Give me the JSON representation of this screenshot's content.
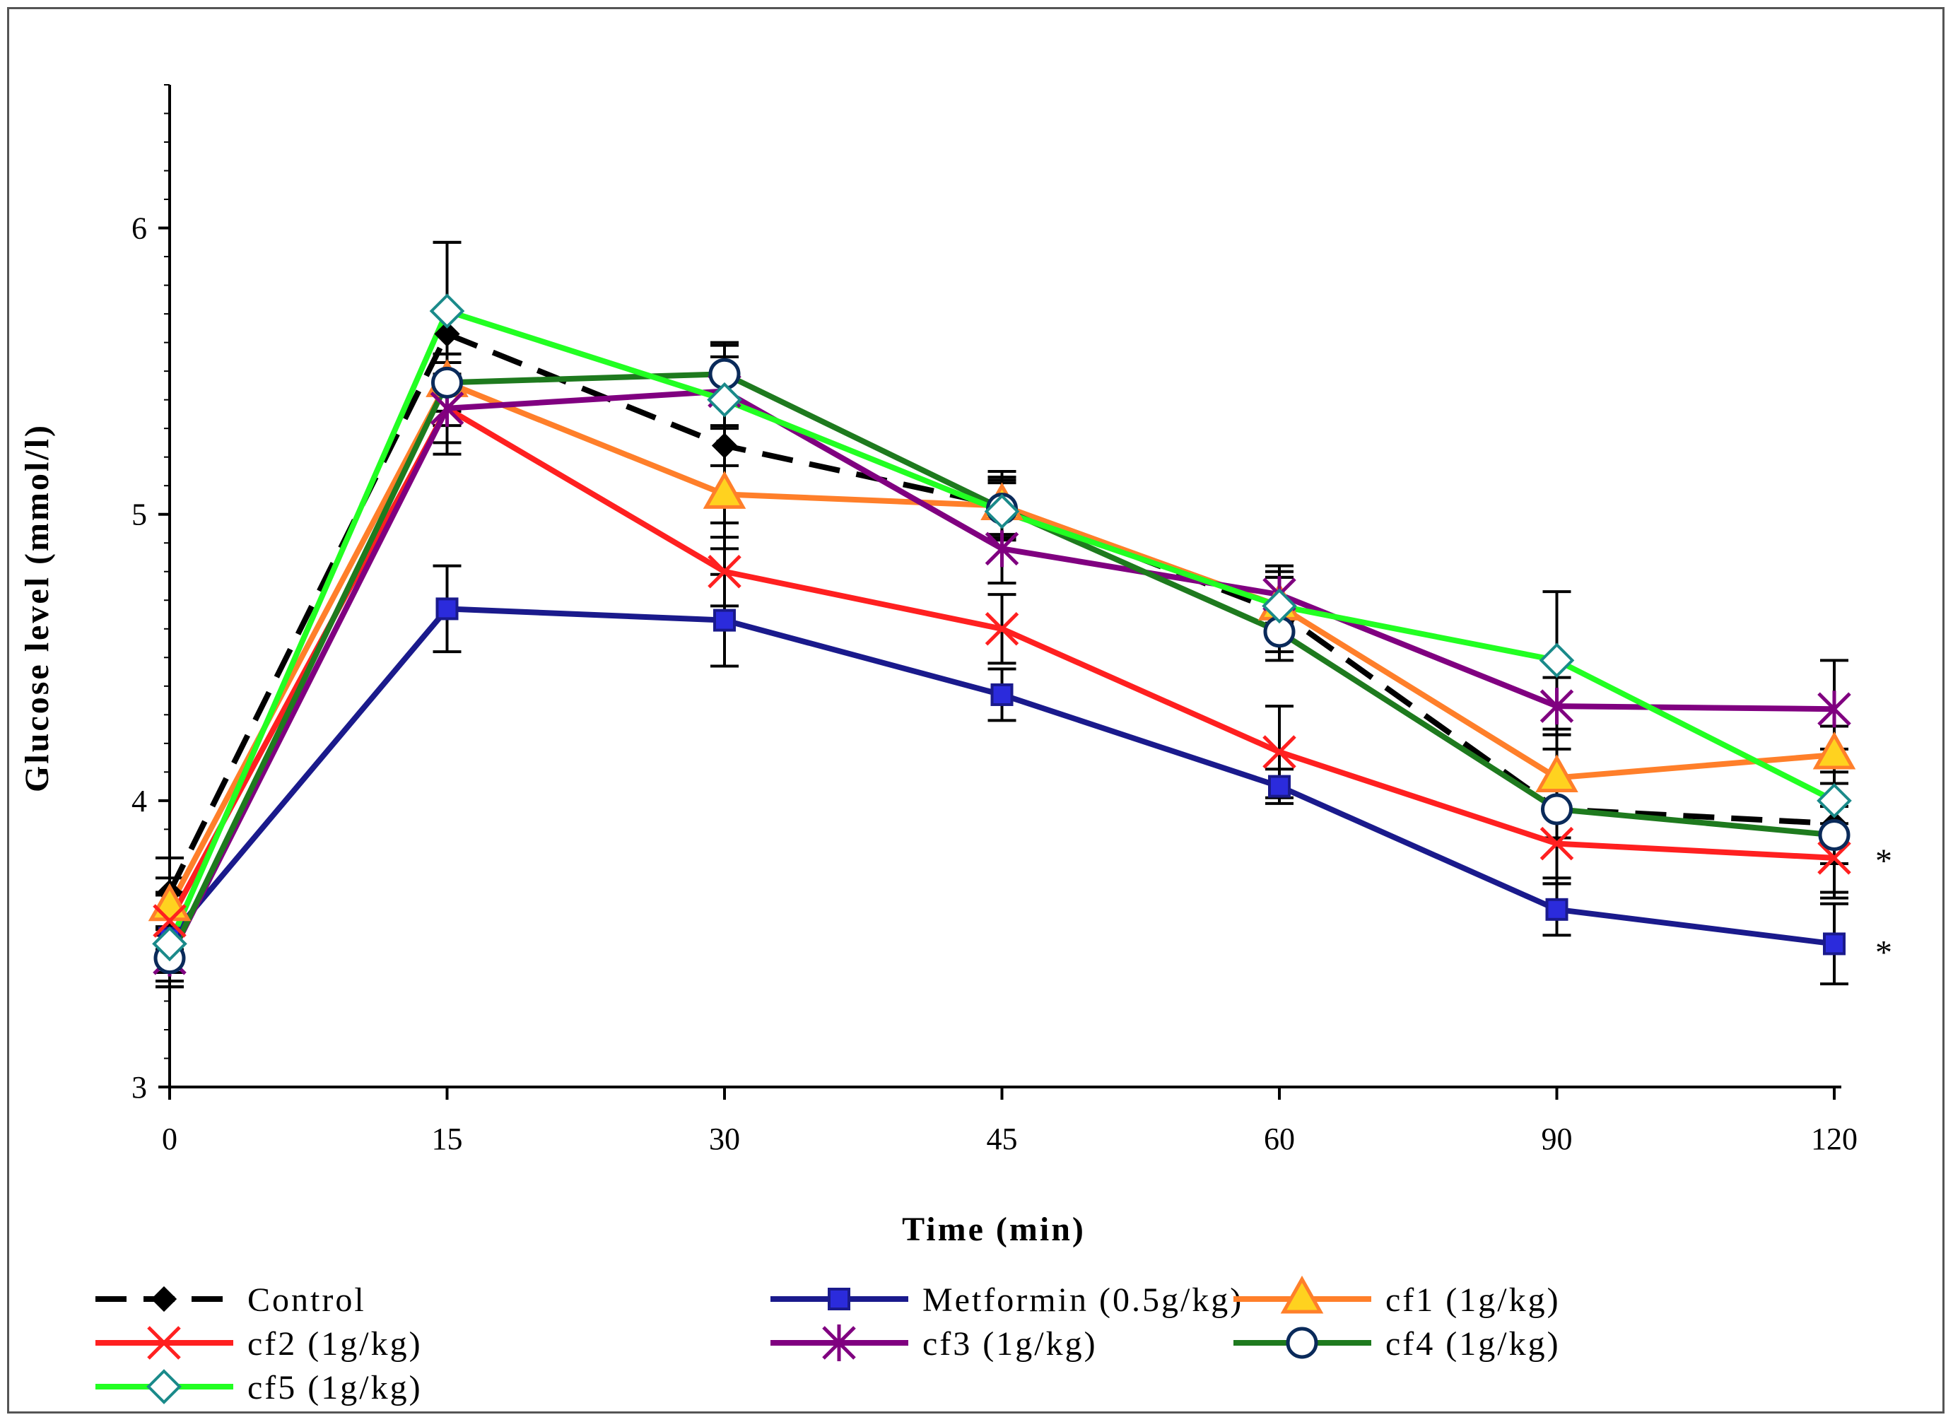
{
  "chart_data": {
    "type": "line",
    "title": "",
    "xlabel": "Time (min)",
    "ylabel": "Glucose level (mmol/l)",
    "categories": [
      "0",
      "15",
      "30",
      "45",
      "60",
      "90",
      "120"
    ],
    "ylim": [
      3,
      6.5
    ],
    "yticks": [
      3,
      4,
      5,
      6
    ],
    "legend_position": "bottom",
    "series": [
      {
        "name": "Control",
        "color": "#000000",
        "marker": "diamond",
        "dashed": true,
        "values": [
          3.68,
          5.63,
          5.24,
          5.03,
          4.66,
          3.97,
          3.92
        ],
        "errors": [
          0.12,
          0.32,
          0.36,
          0.12,
          0.14,
          0.26,
          0.26
        ]
      },
      {
        "name": "Metformin (0.5g/kg)",
        "color": "#1a1a8c",
        "marker": "square",
        "dashed": false,
        "values": [
          3.52,
          4.67,
          4.63,
          4.37,
          4.05,
          3.62,
          3.5
        ],
        "errors": [
          0.15,
          0.15,
          0.16,
          0.09,
          0.06,
          0.09,
          0.14
        ]
      },
      {
        "name": "cf1 (1g/kg)",
        "color": "#ff7f2a",
        "marker": "triangle",
        "dashed": false,
        "values": [
          3.63,
          5.46,
          5.07,
          5.03,
          4.68,
          4.08,
          4.16
        ],
        "errors": [
          0.1,
          0.1,
          0.1,
          0.1,
          0.1,
          0.1,
          0.1
        ]
      },
      {
        "name": "cf2 (1g/kg)",
        "color": "#ff2020",
        "marker": "x",
        "dashed": false,
        "values": [
          3.58,
          5.37,
          4.8,
          4.6,
          4.17,
          3.85,
          3.8
        ],
        "errors": [
          0.1,
          0.16,
          0.12,
          0.12,
          0.16,
          0.12,
          0.12
        ]
      },
      {
        "name": "cf3 (1g/kg)",
        "color": "#800080",
        "marker": "star",
        "dashed": false,
        "values": [
          3.45,
          5.37,
          5.43,
          4.88,
          4.72,
          4.33,
          4.32
        ],
        "errors": [
          0.1,
          0.12,
          0.12,
          0.12,
          0.1,
          0.1,
          0.17
        ]
      },
      {
        "name": "cf4 (1g/kg)",
        "color": "#1e7a1e",
        "marker": "circle",
        "dashed": false,
        "values": [
          3.45,
          5.46,
          5.49,
          5.02,
          4.59,
          3.97,
          3.88
        ],
        "errors": [
          0.1,
          0.1,
          0.1,
          0.1,
          0.1,
          0.1,
          0.1
        ]
      },
      {
        "name": "cf5 (1g/kg)",
        "color": "#22ff22",
        "marker": "diamond-open",
        "dashed": false,
        "values": [
          3.5,
          5.71,
          5.4,
          5.01,
          4.68,
          4.49,
          4.0
        ],
        "errors": [
          0.1,
          0.24,
          0.1,
          0.1,
          0.1,
          0.24,
          0.1
        ]
      }
    ],
    "annotations": [
      {
        "text": "*",
        "category": "120",
        "value": 3.82
      },
      {
        "text": "*",
        "category": "120",
        "value": 3.5
      }
    ]
  }
}
